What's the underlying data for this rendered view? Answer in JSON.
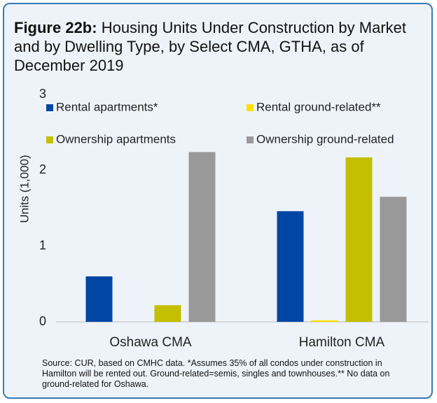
{
  "chart_data": {
    "type": "bar",
    "figure_label": "Figure 22b:",
    "title": "Housing Units Under Construction by Market and by Dwelling Type, by Select CMA, GTHA, as of December 2019",
    "y_label": "Units (1,000)",
    "categories": [
      "Oshawa CMA",
      "Hamilton CMA"
    ],
    "series": [
      {
        "name": "Rental apartments*",
        "color": "#0047a3",
        "values": [
          0.6,
          1.46
        ]
      },
      {
        "name": "Rental ground-related**",
        "color": "#ffe100",
        "values": [
          null,
          0.02
        ]
      },
      {
        "name": "Ownership apartments",
        "color": "#c4bf00",
        "values": [
          0.22,
          2.17
        ]
      },
      {
        "name": "Ownership ground-related",
        "color": "#999999",
        "values": [
          2.24,
          1.65
        ]
      }
    ],
    "ylim": [
      0,
      3
    ],
    "yticks": [
      0,
      1,
      2,
      3
    ],
    "grid": false,
    "source": "Source: CUR, based on CMHC data. *Assumes 35% of all condos under construction in Hamilton will be rented out. Ground-related=semis, singles and townhouses.** No data on ground-related for Oshawa."
  }
}
